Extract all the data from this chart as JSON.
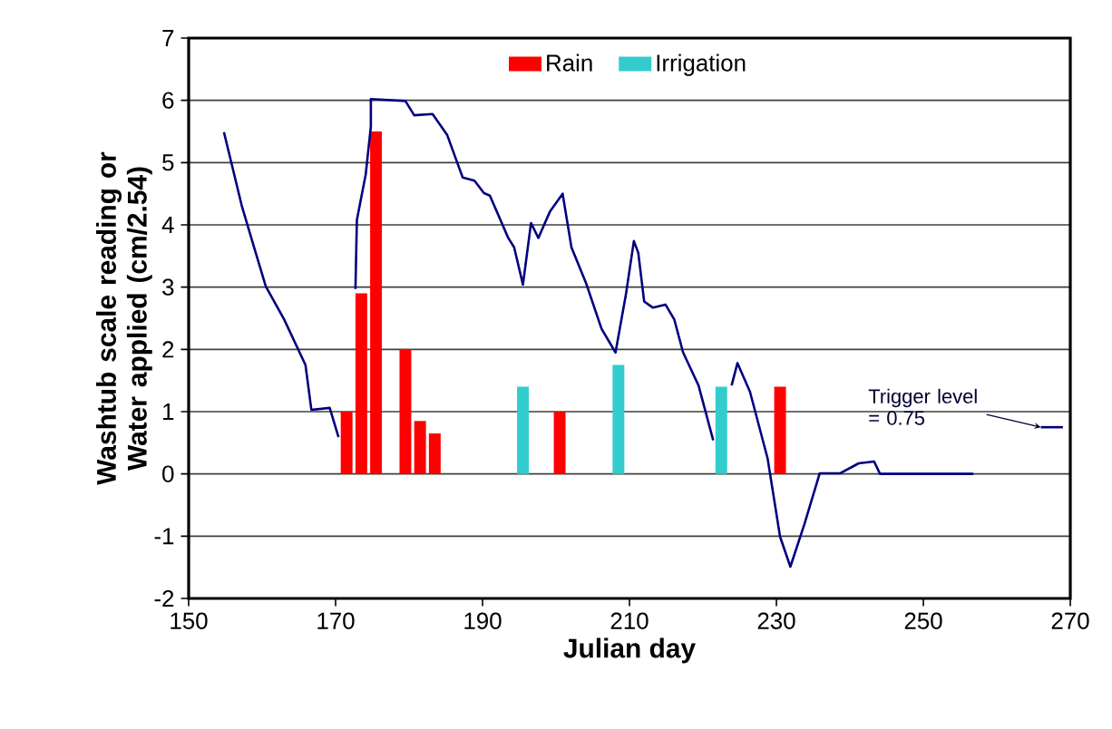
{
  "chart_data": {
    "type": "bar",
    "xlabel": "Julian day",
    "ylabel": "Washtub scale reading or Water applied (cm/2.54)",
    "xlim": [
      150,
      270
    ],
    "xticks": [
      150,
      170,
      190,
      210,
      230,
      250,
      270
    ],
    "ylim": [
      -2,
      7
    ],
    "yticks": [
      -2,
      -1,
      0,
      1,
      2,
      3,
      4,
      5,
      6,
      7
    ],
    "grid": "y",
    "legend": "top",
    "series": [
      {
        "name": "Rain",
        "color": "#ff0000",
        "x": [
          171.5,
          173.5,
          175.5,
          179.5,
          181.5,
          183.5,
          200.5,
          230.5
        ],
        "values": [
          1.0,
          2.9,
          5.5,
          2.0,
          0.85,
          0.65,
          1.0,
          1.4
        ]
      },
      {
        "name": "Irrigation",
        "color": "#33cccc",
        "x": [
          195.5,
          208.5,
          222.5
        ],
        "values": [
          1.4,
          1.75,
          1.4
        ]
      },
      {
        "type": "line",
        "color": "#000080",
        "x": [
          154.8,
          157.2,
          158.9,
          160.5,
          163.0,
          165.9,
          166.7,
          169.2,
          170.4,
          171.5,
          172.7,
          172.9,
          174.1,
          174.8,
          174.8,
          179.5,
          180.7,
          183.2,
          185.2,
          187.3,
          188.9,
          190.2,
          191.0,
          193.5,
          194.3,
          195.5,
          196.6,
          197.6,
          199.2,
          200.9,
          202.1,
          204.1,
          206.2,
          208.1,
          209.5,
          210.6,
          211.2,
          212.0,
          213.2,
          214.9,
          216.1,
          217.3,
          219.4,
          221.4,
          222.5,
          223.9,
          224.7,
          226.4,
          228.8,
          230.5,
          231.9,
          233.8,
          235.9,
          238.7,
          241.2,
          243.3,
          244.1,
          256.8
        ],
        "values": [
          5.49,
          4.32,
          3.64,
          3.01,
          2.48,
          1.75,
          1.03,
          1.06,
          0.59,
          null,
          2.97,
          4.08,
          4.81,
          5.58,
          6.02,
          5.99,
          5.76,
          5.78,
          5.44,
          4.76,
          4.71,
          4.51,
          4.47,
          3.79,
          3.64,
          3.04,
          4.03,
          3.79,
          4.22,
          4.5,
          3.64,
          3.06,
          2.33,
          1.95,
          2.87,
          3.74,
          3.55,
          2.77,
          2.67,
          2.72,
          2.48,
          1.95,
          1.42,
          0.54,
          null,
          1.42,
          1.78,
          1.32,
          0.25,
          -1.01,
          -1.49,
          -0.81,
          0.01,
          0.01,
          0.17,
          0.2,
          0.0,
          0.0
        ]
      },
      {
        "type": "line",
        "color": "#000080",
        "x": [
          266,
          269
        ],
        "values": [
          0.75,
          0.75
        ]
      }
    ],
    "annotations": [
      {
        "text": "Trigger level = 0.75",
        "x": 266,
        "y": 0.75
      }
    ]
  }
}
